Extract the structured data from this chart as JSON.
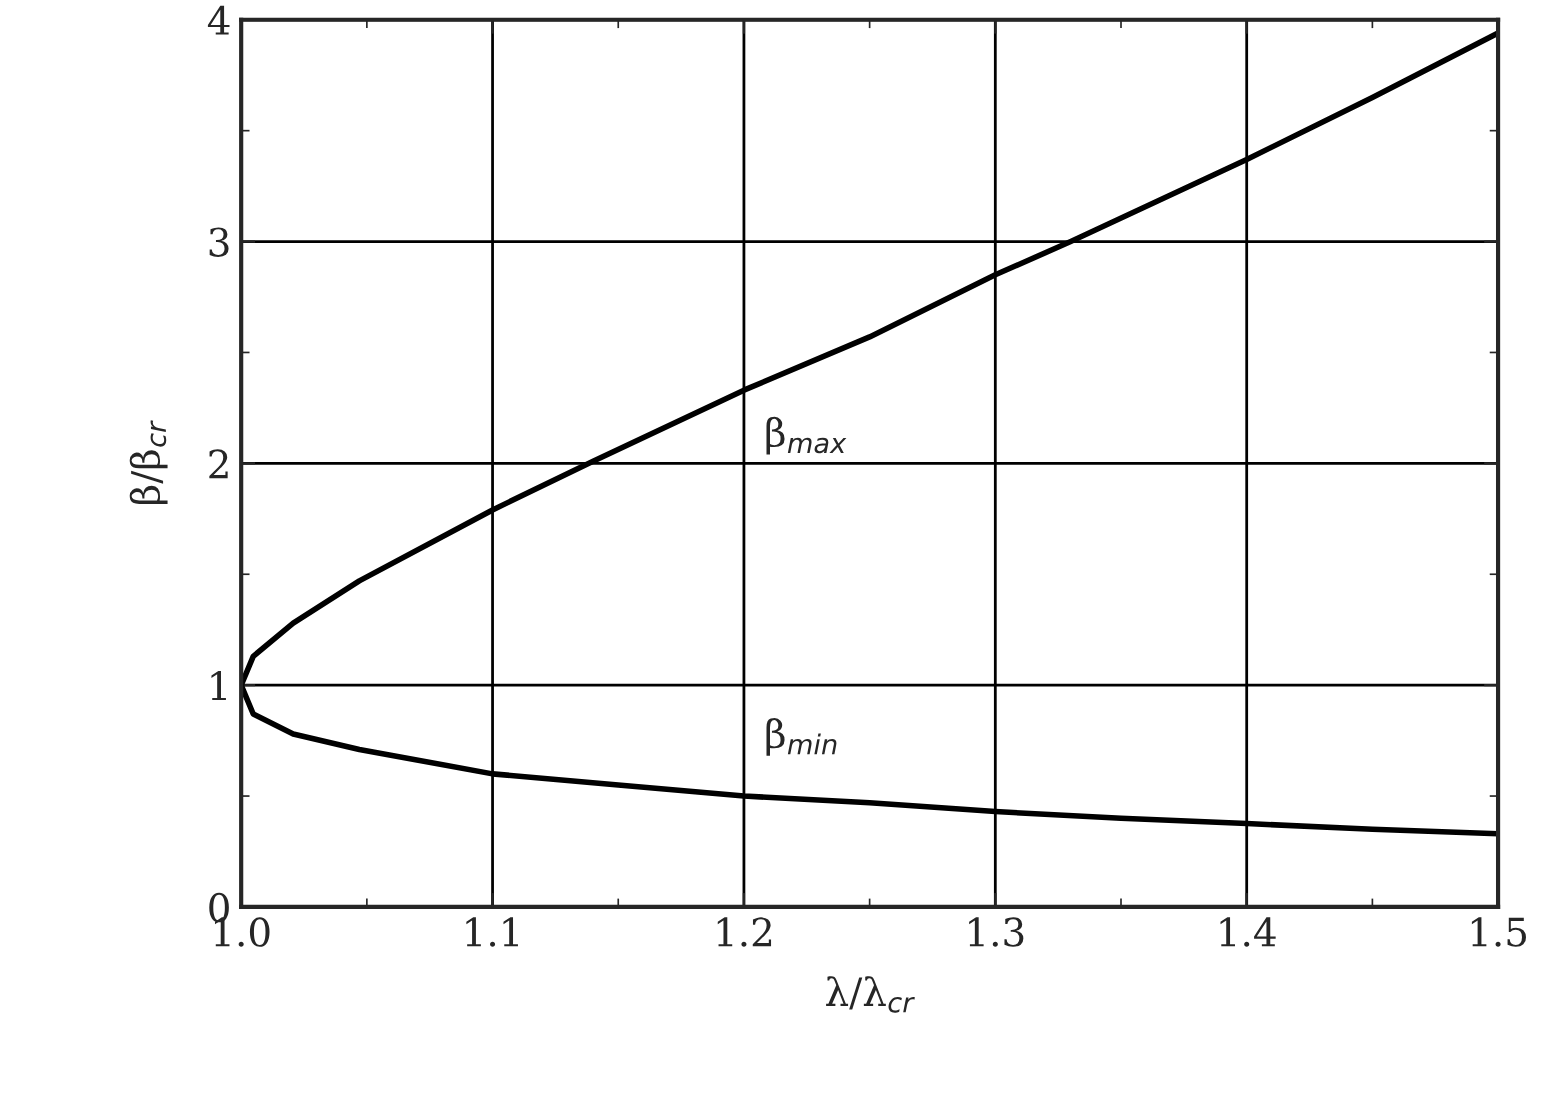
{
  "chart_data": {
    "type": "line",
    "xlabel": "λ/λ$_{cr}$",
    "ylabel": "β/β$_{cr}$",
    "xlim": [
      1.0,
      1.5
    ],
    "ylim": [
      0,
      4
    ],
    "xticks": [
      {
        "value": 1.0,
        "label": "1.0"
      },
      1.1,
      1.2,
      1.3,
      1.4,
      1.5
    ],
    "yticks": [
      0,
      1,
      2,
      3,
      4
    ],
    "grid": true,
    "marker": "none",
    "line_style": "solid",
    "series": [
      {
        "name": "β$_{max}$",
        "color": "#000000",
        "x": [
          1.0,
          1.0048,
          1.0207,
          1.047,
          1.1,
          1.14,
          1.2,
          1.25,
          1.3,
          1.33,
          1.4,
          1.45,
          1.5
        ],
        "values": [
          1.0,
          1.13,
          1.28,
          1.47,
          1.79,
          2.01,
          2.33,
          2.57,
          2.85,
          3.0,
          3.37,
          3.65,
          3.94
        ]
      },
      {
        "name": "β$_{min}$",
        "color": "#000000",
        "x": [
          1.0,
          1.0048,
          1.0207,
          1.047,
          1.1,
          1.15,
          1.2,
          1.25,
          1.3,
          1.35,
          1.4,
          1.45,
          1.5
        ],
        "values": [
          1.0,
          0.87,
          0.78,
          0.71,
          0.6,
          0.55,
          0.5,
          0.47,
          0.43,
          0.4,
          0.376,
          0.35,
          0.33
        ]
      }
    ]
  }
}
